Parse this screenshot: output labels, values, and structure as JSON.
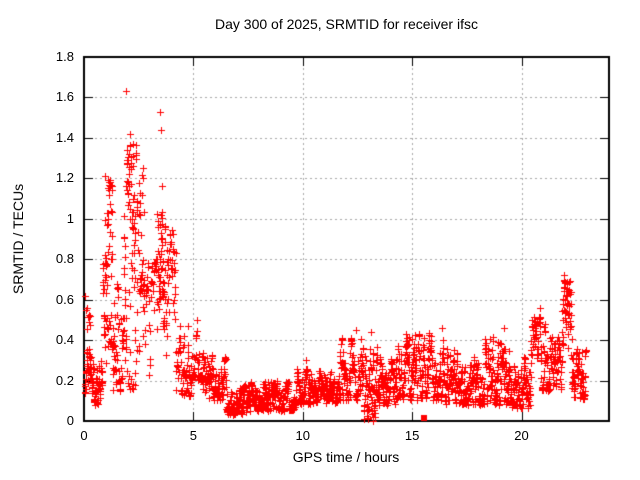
{
  "chart_data": {
    "type": "scatter",
    "title": "Day 300 of 2025, SRMTID for receiver ifsc",
    "xlabel": "GPS time / hours",
    "ylabel": "SRMTID / TECUs",
    "xlim": [
      0,
      24
    ],
    "ylim": [
      0,
      1.8
    ],
    "xticks": {
      "values": [
        0,
        5,
        10,
        15,
        20
      ],
      "labels": [
        "0",
        "5",
        "10",
        "15",
        "20"
      ]
    },
    "yticks": {
      "values": [
        0,
        0.2,
        0.4,
        0.6,
        0.8,
        1.0,
        1.2,
        1.4,
        1.6,
        1.8
      ],
      "labels": [
        "0",
        "0.2",
        "0.4",
        "0.6",
        "0.8",
        "1",
        "1.2",
        "1.4",
        "1.6",
        "1.8"
      ]
    },
    "grid": true,
    "legend": "none",
    "colors": {
      "marker": "#ff0000",
      "grid": "#a8a8a8",
      "border": "#000000",
      "background": "#ffffff"
    },
    "marker": "plus",
    "series": [
      {
        "name": "srmtid-points",
        "marker": "plus",
        "note": "dense 30-s samples summarized as envelope segments [xStart,xEnd,yLow,yHigh,yCenter,count]",
        "segments": [
          [
            0.02,
            0.45,
            0.13,
            0.36,
            0.23,
            60
          ],
          [
            0.03,
            0.3,
            0.42,
            0.62,
            0.52,
            10
          ],
          [
            0.45,
            0.85,
            0.08,
            0.3,
            0.17,
            45
          ],
          [
            0.85,
            1.3,
            0.45,
            1.2,
            0.85,
            55
          ],
          [
            0.9,
            1.35,
            0.18,
            0.5,
            0.32,
            18
          ],
          [
            1.3,
            1.8,
            0.15,
            0.7,
            0.35,
            50
          ],
          [
            1.8,
            2.45,
            0.3,
            1.38,
            0.95,
            85
          ],
          [
            1.95,
            2.4,
            0.15,
            0.45,
            0.28,
            12
          ],
          [
            2.45,
            2.75,
            0.4,
            1.3,
            0.75,
            20
          ],
          [
            2.5,
            3.35,
            0.22,
            0.8,
            0.42,
            55
          ],
          [
            3.35,
            3.7,
            0.45,
            1.05,
            0.72,
            55
          ],
          [
            3.7,
            4.2,
            0.3,
            0.95,
            0.55,
            45
          ],
          [
            4.2,
            4.9,
            0.12,
            0.5,
            0.25,
            60
          ],
          [
            4.9,
            5.45,
            0.2,
            0.46,
            0.3,
            55
          ],
          [
            5.45,
            6.5,
            0.1,
            0.33,
            0.18,
            110
          ],
          [
            6.5,
            7.6,
            0.03,
            0.18,
            0.1,
            125
          ],
          [
            7.6,
            9.7,
            0.05,
            0.2,
            0.11,
            240
          ],
          [
            9.7,
            10.6,
            0.08,
            0.26,
            0.15,
            100
          ],
          [
            10.6,
            11.7,
            0.09,
            0.25,
            0.15,
            120
          ],
          [
            11.7,
            12.7,
            0.1,
            0.42,
            0.2,
            110
          ],
          [
            12.7,
            13.4,
            0.01,
            0.4,
            0.17,
            85
          ],
          [
            13.4,
            14.3,
            0.08,
            0.32,
            0.18,
            100
          ],
          [
            14.3,
            15.4,
            0.1,
            0.44,
            0.22,
            120
          ],
          [
            15.4,
            16.5,
            0.1,
            0.44,
            0.2,
            120
          ],
          [
            16.5,
            17.6,
            0.08,
            0.36,
            0.18,
            120
          ],
          [
            17.6,
            19.5,
            0.08,
            0.42,
            0.19,
            210
          ],
          [
            19.5,
            20.4,
            0.06,
            0.32,
            0.18,
            100
          ],
          [
            20.4,
            21.3,
            0.15,
            0.52,
            0.32,
            90
          ],
          [
            21.3,
            21.85,
            0.15,
            0.42,
            0.27,
            55
          ],
          [
            21.85,
            22.3,
            0.25,
            0.7,
            0.48,
            55
          ],
          [
            22.3,
            22.95,
            0.1,
            0.36,
            0.2,
            70
          ]
        ],
        "outliers": [
          [
            1.92,
            1.63
          ],
          [
            2.1,
            1.42
          ],
          [
            3.47,
            1.53
          ],
          [
            3.5,
            1.44
          ],
          [
            3.55,
            1.16
          ],
          [
            0.95,
            1.21
          ],
          [
            5.18,
            0.5
          ],
          [
            10.15,
            0.3
          ],
          [
            12.45,
            0.45
          ],
          [
            13.1,
            0.44
          ],
          [
            13.2,
            0.0
          ],
          [
            13.22,
            0.02
          ],
          [
            13.18,
            0.05
          ],
          [
            16.35,
            0.46
          ],
          [
            19.2,
            0.46
          ],
          [
            20.85,
            0.56
          ],
          [
            21.95,
            0.72
          ],
          [
            22.0,
            0.68
          ]
        ]
      },
      {
        "name": "flagged-point",
        "marker": "filled-square",
        "points": [
          [
            15.55,
            0.015
          ]
        ]
      }
    ]
  }
}
